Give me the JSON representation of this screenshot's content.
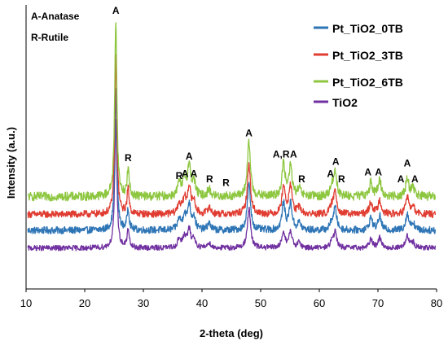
{
  "chart_data": {
    "type": "line",
    "title": "",
    "xlabel": "2-theta (deg)",
    "ylabel": "Intensity (a.u.)",
    "xlim": [
      10,
      80
    ],
    "xticks": [
      10,
      20,
      30,
      40,
      50,
      60,
      70,
      80
    ],
    "y_ticks_shown": false,
    "grid": false,
    "legend_position": "top-right",
    "phase_notes": [
      "A-Anatase",
      "R-Rutile"
    ],
    "series": [
      {
        "name": "Pt_TiO2_0TB",
        "color": "#2e75b6",
        "baseline": 0.33,
        "noise": 0.02,
        "peaks": [
          {
            "x": 25.3,
            "h": 0.78
          },
          {
            "x": 27.4,
            "h": 0.12
          },
          {
            "x": 36.1,
            "h": 0.06
          },
          {
            "x": 37.0,
            "h": 0.08
          },
          {
            "x": 37.8,
            "h": 0.14
          },
          {
            "x": 38.6,
            "h": 0.07
          },
          {
            "x": 41.2,
            "h": 0.04
          },
          {
            "x": 48.0,
            "h": 0.26
          },
          {
            "x": 53.9,
            "h": 0.15
          },
          {
            "x": 55.1,
            "h": 0.15
          },
          {
            "x": 56.6,
            "h": 0.04
          },
          {
            "x": 62.1,
            "h": 0.04
          },
          {
            "x": 62.7,
            "h": 0.12
          },
          {
            "x": 68.8,
            "h": 0.07
          },
          {
            "x": 70.3,
            "h": 0.08
          },
          {
            "x": 75.0,
            "h": 0.09
          },
          {
            "x": 76.0,
            "h": 0.04
          }
        ]
      },
      {
        "name": "Pt_TiO2_3TB",
        "color": "#e03c31",
        "baseline": 0.42,
        "noise": 0.02,
        "peaks": [
          {
            "x": 25.3,
            "h": 0.9
          },
          {
            "x": 27.4,
            "h": 0.14
          },
          {
            "x": 36.1,
            "h": 0.06
          },
          {
            "x": 37.0,
            "h": 0.08
          },
          {
            "x": 37.8,
            "h": 0.15
          },
          {
            "x": 38.6,
            "h": 0.07
          },
          {
            "x": 41.2,
            "h": 0.04
          },
          {
            "x": 48.0,
            "h": 0.28
          },
          {
            "x": 53.9,
            "h": 0.16
          },
          {
            "x": 55.1,
            "h": 0.16
          },
          {
            "x": 56.6,
            "h": 0.04
          },
          {
            "x": 62.1,
            "h": 0.04
          },
          {
            "x": 62.7,
            "h": 0.13
          },
          {
            "x": 68.8,
            "h": 0.07
          },
          {
            "x": 70.3,
            "h": 0.08
          },
          {
            "x": 75.0,
            "h": 0.1
          },
          {
            "x": 76.0,
            "h": 0.04
          }
        ]
      },
      {
        "name": "Pt_TiO2_6TB",
        "color": "#8dc63f",
        "baseline": 0.52,
        "noise": 0.025,
        "peaks": [
          {
            "x": 25.3,
            "h": 1.0
          },
          {
            "x": 27.4,
            "h": 0.15
          },
          {
            "x": 36.1,
            "h": 0.07
          },
          {
            "x": 37.0,
            "h": 0.09
          },
          {
            "x": 37.8,
            "h": 0.17
          },
          {
            "x": 38.6,
            "h": 0.08
          },
          {
            "x": 41.2,
            "h": 0.04
          },
          {
            "x": 48.0,
            "h": 0.3
          },
          {
            "x": 53.9,
            "h": 0.18
          },
          {
            "x": 55.1,
            "h": 0.17
          },
          {
            "x": 56.6,
            "h": 0.04
          },
          {
            "x": 62.1,
            "h": 0.05
          },
          {
            "x": 62.7,
            "h": 0.14
          },
          {
            "x": 68.8,
            "h": 0.08
          },
          {
            "x": 70.3,
            "h": 0.09
          },
          {
            "x": 75.0,
            "h": 0.1
          },
          {
            "x": 76.0,
            "h": 0.05
          }
        ]
      },
      {
        "name": "TiO2",
        "color": "#7030a0",
        "baseline": 0.23,
        "noise": 0.015,
        "peaks": [
          {
            "x": 25.3,
            "h": 0.72
          },
          {
            "x": 27.4,
            "h": 0.1
          },
          {
            "x": 36.1,
            "h": 0.05
          },
          {
            "x": 37.0,
            "h": 0.06
          },
          {
            "x": 37.8,
            "h": 0.1
          },
          {
            "x": 38.6,
            "h": 0.05
          },
          {
            "x": 41.2,
            "h": 0.03
          },
          {
            "x": 48.0,
            "h": 0.22
          },
          {
            "x": 53.9,
            "h": 0.09
          },
          {
            "x": 55.1,
            "h": 0.09
          },
          {
            "x": 56.6,
            "h": 0.03
          },
          {
            "x": 62.1,
            "h": 0.03
          },
          {
            "x": 62.7,
            "h": 0.09
          },
          {
            "x": 68.8,
            "h": 0.05
          },
          {
            "x": 70.3,
            "h": 0.06
          },
          {
            "x": 75.0,
            "h": 0.07
          },
          {
            "x": 76.0,
            "h": 0.03
          }
        ]
      }
    ],
    "annotations": [
      {
        "text": "A",
        "x": 25.3,
        "y": 1.55
      },
      {
        "text": "R",
        "x": 27.4,
        "y": 0.72
      },
      {
        "text": "R",
        "x": 36.1,
        "y": 0.62
      },
      {
        "text": "A",
        "x": 37.1,
        "y": 0.63
      },
      {
        "text": "A",
        "x": 38.6,
        "y": 0.63
      },
      {
        "text": "A",
        "x": 37.8,
        "y": 0.73
      },
      {
        "text": "R",
        "x": 41.3,
        "y": 0.6
      },
      {
        "text": "R",
        "x": 44.1,
        "y": 0.58
      },
      {
        "text": "A",
        "x": 48.0,
        "y": 0.86
      },
      {
        "text": "A,R",
        "x": 53.5,
        "y": 0.74
      },
      {
        "text": "A",
        "x": 55.6,
        "y": 0.74
      },
      {
        "text": "R",
        "x": 57.0,
        "y": 0.6
      },
      {
        "text": "A",
        "x": 61.9,
        "y": 0.63
      },
      {
        "text": "A",
        "x": 62.8,
        "y": 0.7
      },
      {
        "text": "R",
        "x": 63.8,
        "y": 0.6
      },
      {
        "text": "A",
        "x": 68.3,
        "y": 0.64
      },
      {
        "text": "A",
        "x": 70.1,
        "y": 0.64
      },
      {
        "text": "A",
        "x": 75.0,
        "y": 0.69
      },
      {
        "text": "A",
        "x": 73.9,
        "y": 0.6
      },
      {
        "text": "A",
        "x": 76.3,
        "y": 0.6
      }
    ]
  }
}
